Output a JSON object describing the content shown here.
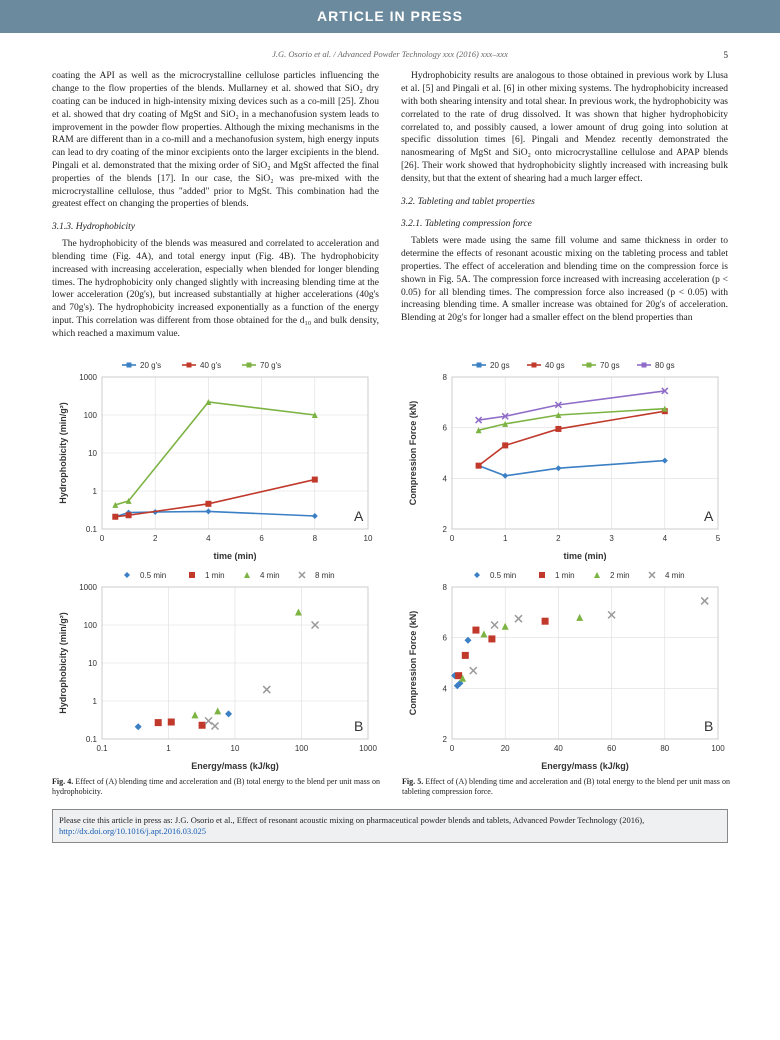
{
  "banner": "ARTICLE IN PRESS",
  "running_head": "J.G. Osorio et al. / Advanced Powder Technology xxx (2016) xxx–xxx",
  "page_number": "5",
  "left": {
    "p1": "coating the API as well as the microcrystalline cellulose particles influencing the change to the flow properties of the blends. Mullarney et al. showed that SiO₂ dry coating can be induced in high-intensity mixing devices such as a co-mill [25]. Zhou et al. showed that dry coating of MgSt and SiO₂ in a mechanofusion system leads to improvement in the powder flow properties. Although the mixing mechanisms in the RAM are different than in a co-mill and a mechanofusion system, high energy inputs can lead to dry coating of the minor excipients onto the larger excipients in the blend. Pingali et al. demonstrated that the mixing order of SiO₂ and MgSt affected the final properties of the blends [17]. In our case, the SiO₂ was pre-mixed with the microcrystalline cellulose, thus \"added\" prior to MgSt. This combination had the greatest effect on changing the properties of blends.",
    "h1": "3.1.3. Hydrophobicity",
    "p2": "The hydrophobicity of the blends was measured and correlated to acceleration and blending time (Fig. 4A), and total energy input (Fig. 4B). The hydrophobicity increased with increasing acceleration, especially when blended for longer blending times. The hydrophobicity only changed slightly with increasing blending time at the lower acceleration (20g's), but increased substantially at higher accelerations (40g's and 70g's). The hydrophobicity increased exponentially as a function of the energy input. This correlation was different from those obtained for the d₁₀ and bulk density, which reached a maximum value."
  },
  "right": {
    "p1": "Hydrophobicity results are analogous to those obtained in previous work by Llusa et al. [5] and Pingali et al. [6] in other mixing systems. The hydrophobicity increased with both shearing intensity and total shear. In previous work, the hydrophobicity was correlated to the rate of drug dissolved. It was shown that higher hydrophobicity correlated to, and possibly caused, a lower amount of drug going into solution at specific dissolution times [6]. Pingali and Mendez recently demonstrated the nanosmearing of MgSt and SiO₂ onto microcrystalline cellulose and APAP blends [26]. Their work showed that hydrophobicity slightly increased with increasing bulk density, but that the extent of shearing had a much larger effect.",
    "h1": "3.2. Tableting and tablet properties",
    "h2": "3.2.1. Tableting compression force",
    "p2": "Tablets were made using the same fill volume and same thickness in order to determine the effects of resonant acoustic mixing on the tableting process and tablet properties. The effect of acceleration and blending time on the compression force is shown in Fig. 5A. The compression force increased with increasing acceleration (p < 0.05) for all blending times. The compression force also increased (p < 0.05) with increasing blending time. A smaller increase was obtained for 20g's of acceleration. Blending at 20g's for longer had a smaller effect on the blend properties than"
  },
  "fig4": {
    "caption": "Effect of (A) blending time and acceleration and (B) total energy to the blend per unit mass on hydrophobicity.",
    "A": {
      "legend": [
        "20 g's",
        "40 g's",
        "70 g's"
      ],
      "colors": [
        "#3b7fc4",
        "#c0392b",
        "#7cb342"
      ],
      "xlabel": "time (min)",
      "ylabel": "Hydrophobicity (min/g²)",
      "xlim": [
        0,
        10
      ],
      "xticks": [
        0,
        2,
        4,
        6,
        8,
        10
      ],
      "ylim": [
        0.1,
        1000
      ],
      "yticks": [
        0.1,
        1,
        10,
        100,
        1000
      ],
      "series": {
        "20": [
          [
            0.5,
            0.21
          ],
          [
            1,
            0.27
          ],
          [
            2,
            0.28
          ],
          [
            4,
            0.29
          ],
          [
            8,
            0.22
          ]
        ],
        "40": [
          [
            0.5,
            0.21
          ],
          [
            1,
            0.23
          ],
          [
            4,
            0.46
          ],
          [
            8,
            2.0
          ]
        ],
        "70": [
          [
            0.5,
            0.43
          ],
          [
            1,
            0.55
          ],
          [
            4,
            220
          ],
          [
            8,
            100
          ]
        ]
      }
    },
    "B": {
      "legend": [
        "0.5 min",
        "1 min",
        "4 min",
        "8 min"
      ],
      "colors": [
        "#3b7fc4",
        "#c0392b",
        "#7cb342",
        "#999999"
      ],
      "markers": [
        "diamond",
        "square",
        "triangle",
        "x"
      ],
      "xlabel": "Energy/mass (kJ/kg)",
      "ylabel": "Hydrophobicity (min/g²)",
      "xlim": [
        0.1,
        1000
      ],
      "xticks": [
        0.1,
        1,
        10,
        100,
        1000
      ],
      "ylim": [
        0.1,
        1000
      ],
      "yticks": [
        0.1,
        1,
        10,
        100,
        1000
      ],
      "points": [
        [
          0.35,
          0.21,
          "diamond",
          "#3b7fc4"
        ],
        [
          0.7,
          0.27,
          "square",
          "#c0392b"
        ],
        [
          1.1,
          0.28,
          "square",
          "#c0392b"
        ],
        [
          2.5,
          0.43,
          "triangle",
          "#7cb342"
        ],
        [
          3.2,
          0.23,
          "square",
          "#c0392b"
        ],
        [
          4,
          0.3,
          "x",
          "#999999"
        ],
        [
          5,
          0.22,
          "x",
          "#999999"
        ],
        [
          5.5,
          0.55,
          "triangle",
          "#7cb342"
        ],
        [
          8,
          0.46,
          "diamond",
          "#3b7fc4"
        ],
        [
          30,
          2,
          "x",
          "#999999"
        ],
        [
          90,
          220,
          "triangle",
          "#7cb342"
        ],
        [
          160,
          100,
          "x",
          "#999999"
        ]
      ]
    }
  },
  "fig5": {
    "caption": "Effect of (A) blending time and acceleration and (B) total energy to the blend per unit mass on tableting compression force.",
    "A": {
      "legend": [
        "20 gs",
        "40 gs",
        "70 gs",
        "80 gs"
      ],
      "colors": [
        "#3b7fc4",
        "#c0392b",
        "#7cb342",
        "#8e6cc7"
      ],
      "xlabel": "time (min)",
      "ylabel": "Compression Force (kN)",
      "xlim": [
        0,
        5
      ],
      "xticks": [
        0,
        1,
        2,
        3,
        4,
        5
      ],
      "ylim": [
        2,
        8
      ],
      "yticks": [
        2,
        4,
        6,
        8
      ],
      "series": {
        "20": [
          [
            0.5,
            4.5
          ],
          [
            1,
            4.1
          ],
          [
            2,
            4.4
          ],
          [
            4,
            4.7
          ]
        ],
        "40": [
          [
            0.5,
            4.5
          ],
          [
            1,
            5.3
          ],
          [
            2,
            5.95
          ],
          [
            4,
            6.65
          ]
        ],
        "70": [
          [
            0.5,
            5.9
          ],
          [
            1,
            6.15
          ],
          [
            2,
            6.5
          ],
          [
            4,
            6.75
          ]
        ],
        "80": [
          [
            0.5,
            6.3
          ],
          [
            1,
            6.45
          ],
          [
            2,
            6.9
          ],
          [
            4,
            7.45
          ]
        ]
      }
    },
    "B": {
      "legend": [
        "0.5 min",
        "1 min",
        "2 min",
        "4 min"
      ],
      "colors": [
        "#3b7fc4",
        "#c0392b",
        "#7cb342",
        "#999999"
      ],
      "markers": [
        "diamond",
        "square",
        "triangle",
        "x"
      ],
      "xlabel": "Energy/mass (kJ/kg)",
      "ylabel": "Compression Force (kN)",
      "xlim": [
        0,
        100
      ],
      "xticks": [
        0,
        20,
        40,
        60,
        80,
        100
      ],
      "ylim": [
        2,
        8
      ],
      "yticks": [
        2,
        4,
        6,
        8
      ],
      "points": [
        [
          1,
          4.5,
          "diamond",
          "#3b7fc4"
        ],
        [
          2,
          4.1,
          "diamond",
          "#3b7fc4"
        ],
        [
          2.5,
          4.5,
          "square",
          "#c0392b"
        ],
        [
          3,
          4.2,
          "diamond",
          "#3b7fc4"
        ],
        [
          4,
          4.4,
          "triangle",
          "#7cb342"
        ],
        [
          5,
          5.3,
          "square",
          "#c0392b"
        ],
        [
          6,
          5.9,
          "diamond",
          "#3b7fc4"
        ],
        [
          8,
          4.7,
          "x",
          "#999999"
        ],
        [
          9,
          6.3,
          "square",
          "#c0392b"
        ],
        [
          12,
          6.15,
          "triangle",
          "#7cb342"
        ],
        [
          15,
          5.95,
          "square",
          "#c0392b"
        ],
        [
          16,
          6.5,
          "x",
          "#999999"
        ],
        [
          20,
          6.45,
          "triangle",
          "#7cb342"
        ],
        [
          25,
          6.75,
          "x",
          "#999999"
        ],
        [
          35,
          6.65,
          "square",
          "#c0392b"
        ],
        [
          48,
          6.8,
          "triangle",
          "#7cb342"
        ],
        [
          60,
          6.9,
          "x",
          "#999999"
        ],
        [
          95,
          7.45,
          "x",
          "#999999"
        ]
      ]
    }
  },
  "cite_box": {
    "text": "Please cite this article in press as: J.G. Osorio et al., Effect of resonant acoustic mixing on pharmaceutical powder blends and tablets, Advanced Powder Technology (2016), ",
    "link": "http://dx.doi.org/10.1016/j.apt.2016.03.025"
  }
}
